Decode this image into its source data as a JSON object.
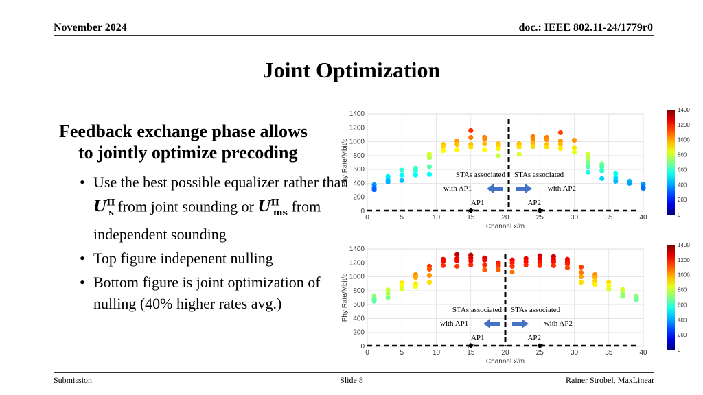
{
  "header": {
    "date": "November 2024",
    "doc": "doc.: IEEE 802.11-24/1779r0"
  },
  "slide": {
    "title": "Joint Optimization",
    "main_point_line1": "Feedback exchange phase allows",
    "main_point_line2": "to jointly optimize precoding",
    "bullet1_part1": "Use the best possible equalizer rather than ",
    "bullet1_sym1_base": "U",
    "bullet1_sym1_sup": "H",
    "bullet1_sym1_sub": "s",
    "bullet1_part2": " from joint sounding or ",
    "bullet1_sym2_base": "U",
    "bullet1_sym2_sup": "H",
    "bullet1_sym2_sub": "ms",
    "bullet1_part3": " from independent sounding",
    "bullet2": "Top figure indepenent nulling",
    "bullet3": "Bottom figure is joint optimization of nulling (40% higher rates avg.)"
  },
  "footer": {
    "left": "Submission",
    "center": "Slide 8",
    "right": "Rainer Strobel, MaxLinear"
  },
  "chart_data": [
    {
      "type": "scatter",
      "xlabel": "Channel x/m",
      "ylabel": "Phy Rate/Mbit/s",
      "xlim": [
        0,
        40
      ],
      "ylim": [
        0,
        1400
      ],
      "xticks": [
        0,
        5,
        10,
        15,
        20,
        25,
        30,
        35,
        40
      ],
      "yticks": [
        0,
        200,
        400,
        600,
        800,
        1000,
        1200,
        1400
      ],
      "colorbar": {
        "min": 0,
        "max": 1400,
        "ticks": [
          0,
          200,
          400,
          600,
          800,
          1000,
          1200,
          1400
        ]
      },
      "annotations": {
        "left_label_line1": "STAs associated",
        "left_label_line2": "with AP1",
        "right_label_line1": "STAs associated",
        "right_label_line2": "with AP2",
        "ap1_label": "AP1",
        "ap2_label": "AP2",
        "ap_marker_text": "AP",
        "ap1_x": 15,
        "ap2_x": 25,
        "divider_x": 20.5
      },
      "arrow_color": "#4472c4",
      "points": [
        {
          "x": 1,
          "y": 380
        },
        {
          "x": 1,
          "y": 340
        },
        {
          "x": 1,
          "y": 310
        },
        {
          "x": 3,
          "y": 500
        },
        {
          "x": 3,
          "y": 450
        },
        {
          "x": 3,
          "y": 420
        },
        {
          "x": 5,
          "y": 590
        },
        {
          "x": 5,
          "y": 520
        },
        {
          "x": 5,
          "y": 440
        },
        {
          "x": 7,
          "y": 620
        },
        {
          "x": 7,
          "y": 580
        },
        {
          "x": 7,
          "y": 520
        },
        {
          "x": 9,
          "y": 820
        },
        {
          "x": 9,
          "y": 770
        },
        {
          "x": 9,
          "y": 640
        },
        {
          "x": 9,
          "y": 530
        },
        {
          "x": 11,
          "y": 960
        },
        {
          "x": 11,
          "y": 930
        },
        {
          "x": 11,
          "y": 870
        },
        {
          "x": 13,
          "y": 1010
        },
        {
          "x": 13,
          "y": 960
        },
        {
          "x": 13,
          "y": 880
        },
        {
          "x": 15,
          "y": 1160
        },
        {
          "x": 15,
          "y": 1060
        },
        {
          "x": 15,
          "y": 960
        },
        {
          "x": 15,
          "y": 920
        },
        {
          "x": 17,
          "y": 1060
        },
        {
          "x": 17,
          "y": 1040
        },
        {
          "x": 17,
          "y": 970
        },
        {
          "x": 17,
          "y": 880
        },
        {
          "x": 19,
          "y": 970
        },
        {
          "x": 19,
          "y": 940
        },
        {
          "x": 19,
          "y": 900
        },
        {
          "x": 19,
          "y": 800
        },
        {
          "x": 22,
          "y": 970
        },
        {
          "x": 22,
          "y": 950
        },
        {
          "x": 22,
          "y": 920
        },
        {
          "x": 22,
          "y": 820
        },
        {
          "x": 24,
          "y": 1070
        },
        {
          "x": 24,
          "y": 1040
        },
        {
          "x": 24,
          "y": 980
        },
        {
          "x": 24,
          "y": 930
        },
        {
          "x": 26,
          "y": 1060
        },
        {
          "x": 26,
          "y": 1030
        },
        {
          "x": 26,
          "y": 960
        },
        {
          "x": 26,
          "y": 920
        },
        {
          "x": 28,
          "y": 1130
        },
        {
          "x": 28,
          "y": 1010
        },
        {
          "x": 28,
          "y": 960
        },
        {
          "x": 28,
          "y": 900
        },
        {
          "x": 30,
          "y": 1020
        },
        {
          "x": 30,
          "y": 910
        },
        {
          "x": 30,
          "y": 850
        },
        {
          "x": 32,
          "y": 820
        },
        {
          "x": 32,
          "y": 770
        },
        {
          "x": 32,
          "y": 700
        },
        {
          "x": 32,
          "y": 640
        },
        {
          "x": 32,
          "y": 560
        },
        {
          "x": 34,
          "y": 680
        },
        {
          "x": 34,
          "y": 640
        },
        {
          "x": 34,
          "y": 580
        },
        {
          "x": 34,
          "y": 470
        },
        {
          "x": 36,
          "y": 540
        },
        {
          "x": 36,
          "y": 480
        },
        {
          "x": 36,
          "y": 430
        },
        {
          "x": 38,
          "y": 430
        },
        {
          "x": 38,
          "y": 400
        },
        {
          "x": 40,
          "y": 390
        },
        {
          "x": 40,
          "y": 350
        },
        {
          "x": 40,
          "y": 330
        }
      ]
    },
    {
      "type": "scatter",
      "xlabel": "Channel x/m",
      "ylabel": "Phy Rate/Mbit/s",
      "xlim": [
        0,
        40
      ],
      "ylim": [
        0,
        1400
      ],
      "xticks": [
        0,
        5,
        10,
        15,
        20,
        25,
        30,
        35,
        40
      ],
      "yticks": [
        0,
        200,
        400,
        600,
        800,
        1000,
        1200,
        1400
      ],
      "colorbar": {
        "min": 0,
        "max": 1400,
        "ticks": [
          0,
          200,
          400,
          600,
          800,
          1000,
          1200,
          1400
        ]
      },
      "annotations": {
        "left_label_line1": "STAs associated",
        "left_label_line2": "with AP1",
        "right_label_line1": "STAs associated",
        "right_label_line2": "with AP2",
        "ap1_label": "AP1",
        "ap2_label": "AP2",
        "ap_marker_text": "AP",
        "ap1_x": 15,
        "ap2_x": 25,
        "divider_x": 20
      },
      "arrow_color": "#4472c4",
      "points": [
        {
          "x": 1,
          "y": 720
        },
        {
          "x": 1,
          "y": 680
        },
        {
          "x": 1,
          "y": 650
        },
        {
          "x": 3,
          "y": 810
        },
        {
          "x": 3,
          "y": 760
        },
        {
          "x": 3,
          "y": 700
        },
        {
          "x": 5,
          "y": 910
        },
        {
          "x": 5,
          "y": 880
        },
        {
          "x": 5,
          "y": 820
        },
        {
          "x": 7,
          "y": 1030
        },
        {
          "x": 7,
          "y": 990
        },
        {
          "x": 7,
          "y": 900
        },
        {
          "x": 7,
          "y": 860
        },
        {
          "x": 9,
          "y": 1150
        },
        {
          "x": 9,
          "y": 1110
        },
        {
          "x": 9,
          "y": 1020
        },
        {
          "x": 9,
          "y": 920
        },
        {
          "x": 11,
          "y": 1250
        },
        {
          "x": 11,
          "y": 1220
        },
        {
          "x": 11,
          "y": 1160
        },
        {
          "x": 13,
          "y": 1320
        },
        {
          "x": 13,
          "y": 1260
        },
        {
          "x": 13,
          "y": 1230
        },
        {
          "x": 13,
          "y": 1150
        },
        {
          "x": 15,
          "y": 1310
        },
        {
          "x": 15,
          "y": 1270
        },
        {
          "x": 15,
          "y": 1230
        },
        {
          "x": 15,
          "y": 1170
        },
        {
          "x": 17,
          "y": 1270
        },
        {
          "x": 17,
          "y": 1240
        },
        {
          "x": 17,
          "y": 1170
        },
        {
          "x": 17,
          "y": 1100
        },
        {
          "x": 19,
          "y": 1200
        },
        {
          "x": 19,
          "y": 1180
        },
        {
          "x": 19,
          "y": 1150
        },
        {
          "x": 19,
          "y": 1100
        },
        {
          "x": 21,
          "y": 1240
        },
        {
          "x": 21,
          "y": 1200
        },
        {
          "x": 21,
          "y": 1150
        },
        {
          "x": 21,
          "y": 1070
        },
        {
          "x": 23,
          "y": 1260
        },
        {
          "x": 23,
          "y": 1220
        },
        {
          "x": 23,
          "y": 1170
        },
        {
          "x": 25,
          "y": 1300
        },
        {
          "x": 25,
          "y": 1260
        },
        {
          "x": 25,
          "y": 1200
        },
        {
          "x": 25,
          "y": 1160
        },
        {
          "x": 27,
          "y": 1290
        },
        {
          "x": 27,
          "y": 1250
        },
        {
          "x": 27,
          "y": 1210
        },
        {
          "x": 27,
          "y": 1160
        },
        {
          "x": 29,
          "y": 1250
        },
        {
          "x": 29,
          "y": 1210
        },
        {
          "x": 29,
          "y": 1180
        },
        {
          "x": 29,
          "y": 1130
        },
        {
          "x": 31,
          "y": 1140
        },
        {
          "x": 31,
          "y": 1060
        },
        {
          "x": 31,
          "y": 1000
        },
        {
          "x": 31,
          "y": 920
        },
        {
          "x": 33,
          "y": 1030
        },
        {
          "x": 33,
          "y": 990
        },
        {
          "x": 33,
          "y": 940
        },
        {
          "x": 33,
          "y": 890
        },
        {
          "x": 35,
          "y": 920
        },
        {
          "x": 35,
          "y": 870
        },
        {
          "x": 35,
          "y": 820
        },
        {
          "x": 37,
          "y": 820
        },
        {
          "x": 37,
          "y": 760
        },
        {
          "x": 37,
          "y": 720
        },
        {
          "x": 39,
          "y": 720
        },
        {
          "x": 39,
          "y": 700
        },
        {
          "x": 39,
          "y": 670
        }
      ]
    }
  ]
}
